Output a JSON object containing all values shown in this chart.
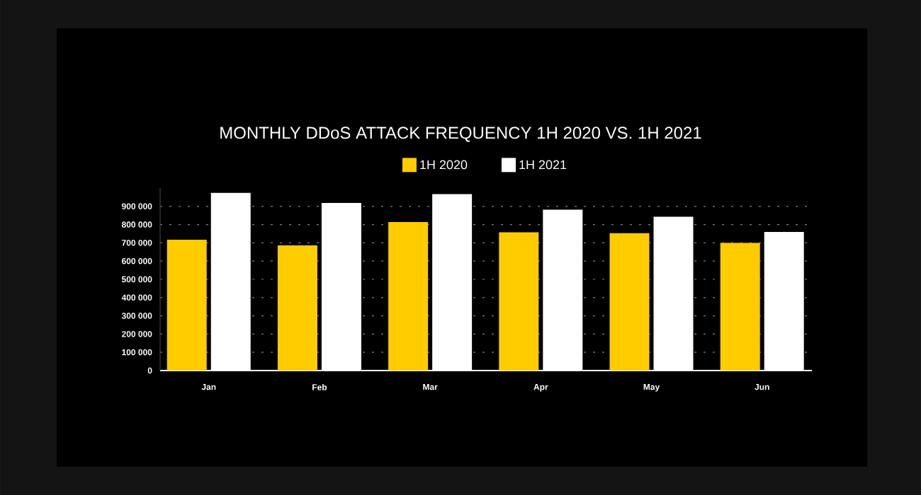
{
  "chart_data": {
    "type": "bar",
    "title": "MONTHLY DDoS ATTACK FREQUENCY 1H 2020 VS. 1H 2021",
    "categories": [
      "Jan",
      "Feb",
      "Mar",
      "Apr",
      "May",
      "Jun"
    ],
    "series": [
      {
        "name": "1H 2020",
        "color": "#ffcc00",
        "values": [
          717000,
          686000,
          814000,
          758000,
          753000,
          700000
        ]
      },
      {
        "name": "1H 2021",
        "color": "#ffffff",
        "values": [
          974000,
          919000,
          967000,
          882000,
          843000,
          760000
        ]
      }
    ],
    "ylim": [
      0,
      1000000
    ],
    "yticks": [
      0,
      {
        "value": 100000,
        "label": "100 000"
      },
      {
        "value": 200000,
        "label": "200 000"
      },
      {
        "value": 300000,
        "label": "300 000"
      },
      {
        "value": 400000,
        "label": "400 000"
      },
      {
        "value": 500000,
        "label": "500 000"
      },
      {
        "value": 600000,
        "label": "600 000"
      },
      {
        "value": 700000,
        "label": "700 000"
      },
      {
        "value": 800000,
        "label": "800 000"
      },
      {
        "value": 900000,
        "label": "900 000"
      }
    ],
    "grid": "y",
    "legend": "top"
  }
}
